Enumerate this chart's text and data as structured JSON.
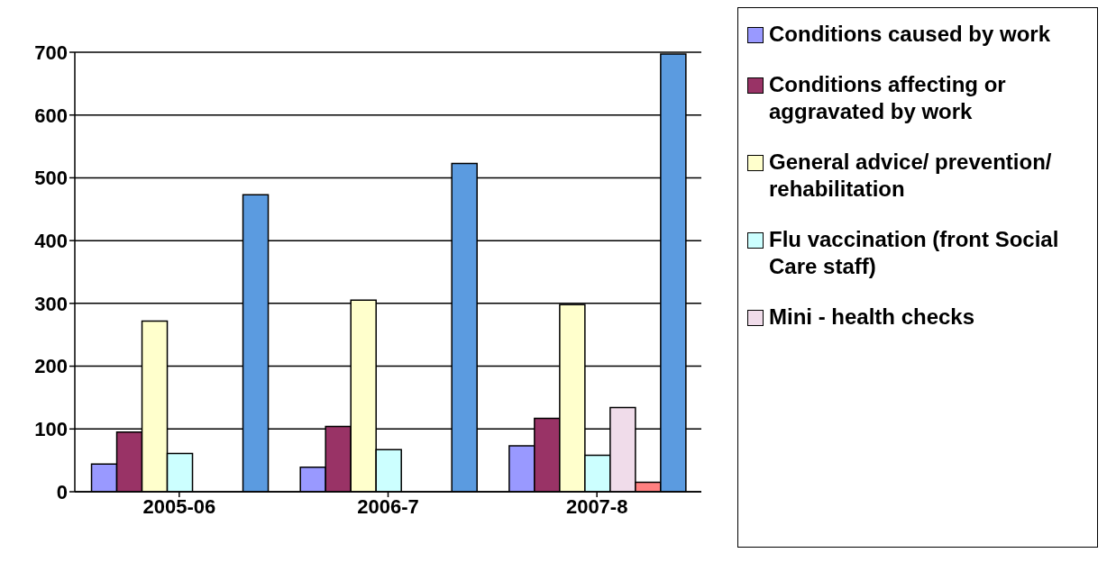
{
  "chart_data": {
    "type": "bar",
    "categories": [
      "2005-06",
      "2006-7",
      "2007-8"
    ],
    "series": [
      {
        "name": "Conditions caused by work",
        "color": "#9999ff",
        "values": [
          44,
          39,
          73
        ]
      },
      {
        "name": "Conditions affecting or aggravated by work",
        "color": "#993366",
        "values": [
          95,
          104,
          117
        ]
      },
      {
        "name": "General advice/ prevention/ rehabilitation",
        "color": "#ffffcc",
        "values": [
          272,
          305,
          298
        ]
      },
      {
        "name": "Flu vaccination (front Social Care staff)",
        "color": "#ccffff",
        "values": [
          61,
          67,
          58
        ]
      },
      {
        "name": "Mini - health checks",
        "color": "#f0dcea",
        "values": [
          null,
          null,
          134
        ]
      },
      {
        "color": "#ff8080",
        "values": [
          null,
          null,
          15
        ]
      },
      {
        "color": "#5b9be0",
        "values": [
          473,
          523,
          697
        ]
      }
    ],
    "ylim": [
      0,
      700
    ],
    "yticks": [
      0,
      100,
      200,
      300,
      400,
      500,
      600,
      700
    ],
    "grid": "y",
    "legend": "right"
  }
}
